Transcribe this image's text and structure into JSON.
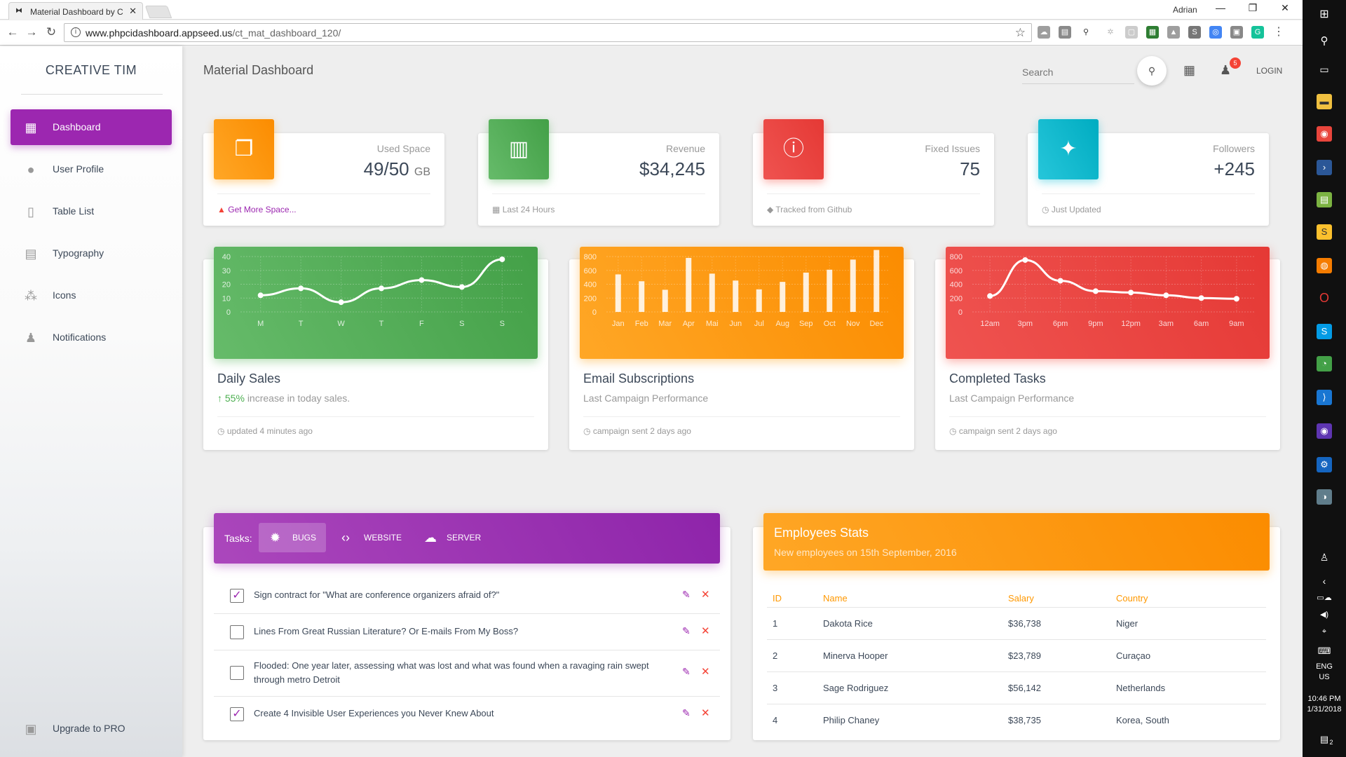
{
  "browser": {
    "tab_title": "Material Dashboard by C",
    "user": "Adrian",
    "url_host": "www.phpcidashboard.appseed.us",
    "url_path": "/ct_mat_dashboard_120/"
  },
  "sidebar": {
    "brand": "CREATIVE TIM",
    "items": [
      {
        "label": "Dashboard",
        "icon": "dashboard-icon"
      },
      {
        "label": "User Profile",
        "icon": "person-icon"
      },
      {
        "label": "Table List",
        "icon": "clipboard-icon"
      },
      {
        "label": "Typography",
        "icon": "library-books-icon"
      },
      {
        "label": "Icons",
        "icon": "bubble-chart-icon"
      },
      {
        "label": "Notifications",
        "icon": "bell-icon"
      }
    ],
    "upgrade": "Upgrade to PRO"
  },
  "header": {
    "title": "Material Dashboard",
    "search_placeholder": "Search",
    "notif_count": "5",
    "login": "LOGIN"
  },
  "stats": [
    {
      "label": "Used Space",
      "value": "49/50",
      "unit": "GB",
      "footer": "Get More Space...",
      "color": "#ff9800"
    },
    {
      "label": "Revenue",
      "value": "$34,245",
      "unit": "",
      "footer": "Last 24 Hours",
      "color": "#4caf50"
    },
    {
      "label": "Fixed Issues",
      "value": "75",
      "unit": "",
      "footer": "Tracked from Github",
      "color": "#f44336"
    },
    {
      "label": "Followers",
      "value": "+245",
      "unit": "",
      "footer": "Just Updated",
      "color": "#26c6da"
    }
  ],
  "charts": {
    "daily": {
      "title": "Daily Sales",
      "sub_pct": "55%",
      "sub_rest": "increase in today sales.",
      "footer": "updated 4 minutes ago"
    },
    "email": {
      "title": "Email Subscriptions",
      "sub": "Last Campaign Performance",
      "footer": "campaign sent 2 days ago"
    },
    "tasks": {
      "title": "Completed Tasks",
      "sub": "Last Campaign Performance",
      "footer": "campaign sent 2 days ago"
    }
  },
  "chart_data": [
    {
      "type": "line",
      "categories": [
        "M",
        "T",
        "W",
        "T",
        "F",
        "S",
        "S"
      ],
      "values": [
        12,
        17,
        7,
        17,
        23,
        18,
        38
      ],
      "yticks": [
        0,
        10,
        20,
        30,
        40
      ],
      "ylim": [
        0,
        40
      ]
    },
    {
      "type": "bar",
      "categories": [
        "Jan",
        "Feb",
        "Mar",
        "Apr",
        "Mai",
        "Jun",
        "Jul",
        "Aug",
        "Sep",
        "Oct",
        "Nov",
        "Dec"
      ],
      "values": [
        542,
        443,
        320,
        780,
        553,
        453,
        326,
        434,
        568,
        610,
        756,
        895
      ],
      "yticks": [
        0,
        200,
        400,
        600,
        800
      ],
      "ylim": [
        0,
        800
      ]
    },
    {
      "type": "line",
      "categories": [
        "12am",
        "3pm",
        "6pm",
        "9pm",
        "12pm",
        "3am",
        "6am",
        "9am"
      ],
      "values": [
        230,
        750,
        450,
        300,
        280,
        240,
        200,
        190
      ],
      "yticks": [
        0,
        200,
        400,
        600,
        800
      ],
      "ylim": [
        0,
        800
      ]
    }
  ],
  "tasks": {
    "label": "Tasks:",
    "tabs": [
      {
        "label": "BUGS",
        "icon": "bug-icon"
      },
      {
        "label": "WEBSITE",
        "icon": "code-icon"
      },
      {
        "label": "SERVER",
        "icon": "cloud-icon"
      }
    ],
    "items": [
      {
        "text": "Sign contract for \"What are conference organizers afraid of?\"",
        "checked": true
      },
      {
        "text": "Lines From Great Russian Literature? Or E-mails From My Boss?",
        "checked": false
      },
      {
        "text": "Flooded: One year later, assessing what was lost and what was found when a ravaging rain swept through metro Detroit",
        "checked": false
      },
      {
        "text": "Create 4 Invisible User Experiences you Never Knew About",
        "checked": true
      }
    ]
  },
  "employees": {
    "title": "Employees Stats",
    "subtitle": "New employees on 15th September, 2016",
    "columns": [
      "ID",
      "Name",
      "Salary",
      "Country"
    ],
    "rows": [
      [
        "1",
        "Dakota Rice",
        "$36,738",
        "Niger"
      ],
      [
        "2",
        "Minerva Hooper",
        "$23,789",
        "Curaçao"
      ],
      [
        "3",
        "Sage Rodriguez",
        "$56,142",
        "Netherlands"
      ],
      [
        "4",
        "Philip Chaney",
        "$38,735",
        "Korea, South"
      ]
    ]
  },
  "taskbar": {
    "lang1": "ENG",
    "lang2": "US",
    "time": "10:46 PM",
    "date": "1/31/2018",
    "notif": "2"
  }
}
